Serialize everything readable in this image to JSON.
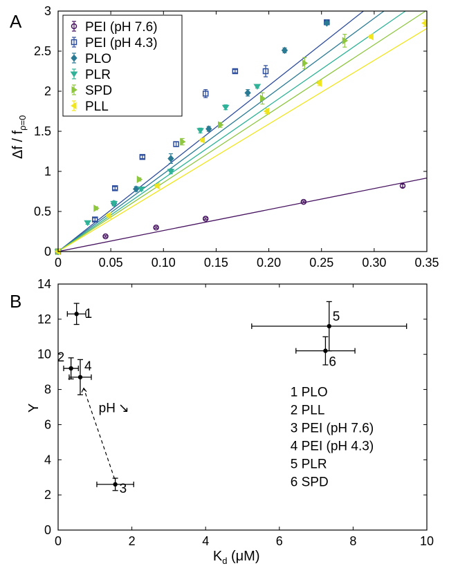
{
  "chart_data": [
    {
      "panel_label": "A",
      "type": "scatter",
      "xlim": [
        0,
        0.35
      ],
      "ylim": [
        0,
        3
      ],
      "xticks": [
        "0",
        "0.05",
        "0.10",
        "0.15",
        "0.20",
        "0.25",
        "0.30",
        "0.35"
      ],
      "yticks": [
        "0",
        "0.5",
        "1",
        "1.5",
        "2",
        "2.5",
        "3"
      ],
      "ylabel_main": "Δf / f",
      "ylabel_sub": "ρ=0",
      "xlabel": "",
      "legend_position": "top-left",
      "series": [
        {
          "name": "PEI (pH 7.6)",
          "color": "#45115f",
          "marker": "circle",
          "slope": 2.62,
          "points": [
            [
              0,
              0
            ],
            [
              0.045,
              0.19
            ],
            [
              0.093,
              0.3
            ],
            [
              0.14,
              0.41
            ],
            [
              0.233,
              0.62
            ],
            [
              0.327,
              0.82
            ]
          ],
          "errors": [
            0,
            0.01,
            0.01,
            0.01,
            0.01,
            0.02
          ]
        },
        {
          "name": "PEI (pH 4.3)",
          "color": "#2a4b9b",
          "marker": "square",
          "slope": 10.35,
          "points": [
            [
              0,
              0
            ],
            [
              0.035,
              0.4
            ],
            [
              0.054,
              0.79
            ],
            [
              0.08,
              1.18
            ],
            [
              0.112,
              1.34
            ],
            [
              0.14,
              1.97
            ],
            [
              0.168,
              2.25
            ],
            [
              0.197,
              2.25
            ],
            [
              0.255,
              2.86
            ]
          ],
          "errors": [
            0,
            0.02,
            0.02,
            0.02,
            0.03,
            0.05,
            0.02,
            0.07,
            0.02
          ]
        },
        {
          "name": "PLO",
          "color": "#2a7a94",
          "marker": "diamond",
          "slope": 9.7,
          "points": [
            [
              0,
              0
            ],
            [
              0.053,
              0.6
            ],
            [
              0.074,
              0.78
            ],
            [
              0.107,
              1.16
            ],
            [
              0.143,
              1.53
            ],
            [
              0.18,
              1.98
            ],
            [
              0.215,
              2.51
            ],
            [
              0.255,
              2.85
            ]
          ],
          "errors": [
            0,
            0.02,
            0.03,
            0.06,
            0.03,
            0.04,
            0.03,
            0.02
          ]
        },
        {
          "name": "PLR",
          "color": "#2fb297",
          "marker": "triangle-down",
          "slope": 9.1,
          "points": [
            [
              0,
              0
            ],
            [
              0.028,
              0.36
            ],
            [
              0.053,
              0.6
            ],
            [
              0.079,
              0.78
            ],
            [
              0.107,
              1.0
            ],
            [
              0.135,
              1.51
            ],
            [
              0.159,
              1.8
            ],
            [
              0.189,
              2.06
            ]
          ],
          "errors": [
            0,
            0.02,
            0.03,
            0.02,
            0.03,
            0.03,
            0.03,
            0.02
          ]
        },
        {
          "name": "SPD",
          "color": "#8ec63f",
          "marker": "triangle-right",
          "slope": 8.6,
          "points": [
            [
              0,
              0
            ],
            [
              0.036,
              0.54
            ],
            [
              0.077,
              0.9
            ],
            [
              0.118,
              1.37
            ],
            [
              0.154,
              1.58
            ],
            [
              0.194,
              1.91
            ],
            [
              0.234,
              2.35
            ],
            [
              0.272,
              2.63
            ]
          ],
          "errors": [
            0,
            0.02,
            0.02,
            0.04,
            0.03,
            0.07,
            0.07,
            0.08
          ]
        },
        {
          "name": "PLL",
          "color": "#f1e51e",
          "marker": "triangle-left",
          "slope": 7.95,
          "points": [
            [
              0,
              0
            ],
            [
              0.048,
              0.45
            ],
            [
              0.094,
              0.82
            ],
            [
              0.137,
              1.39
            ],
            [
              0.198,
              1.75
            ],
            [
              0.248,
              2.1
            ],
            [
              0.297,
              2.68
            ],
            [
              0.348,
              2.85
            ]
          ],
          "errors": [
            0,
            0.02,
            0.02,
            0.02,
            0.03,
            0.03,
            0.02,
            0.04
          ]
        }
      ]
    },
    {
      "panel_label": "B",
      "type": "scatter",
      "xlim": [
        0,
        10
      ],
      "ylim": [
        0,
        14
      ],
      "xticks": [
        "0",
        "2",
        "4",
        "6",
        "8",
        "10"
      ],
      "yticks": [
        "0",
        "2",
        "4",
        "6",
        "8",
        "10",
        "12",
        "14"
      ],
      "ylabel": "Y",
      "xlabel_main": "K",
      "xlabel_sub": "d",
      "xlabel_unit": " (μM)",
      "points": [
        {
          "label": "1",
          "x": 0.5,
          "y": 12.3,
          "xerr": 0.25,
          "yerr": 0.6
        },
        {
          "label": "2",
          "x": 0.35,
          "y": 9.2,
          "xerr": 0.2,
          "yerr": 0.6
        },
        {
          "label": "3",
          "x": 1.55,
          "y": 2.6,
          "xerr": 0.5,
          "yerr": 0.35
        },
        {
          "label": "4",
          "x": 0.6,
          "y": 8.7,
          "xerr": 0.3,
          "yerr": 1.0
        },
        {
          "label": "5",
          "x": 7.35,
          "y": 11.6,
          "xerr": 2.1,
          "yerr": 1.4
        },
        {
          "label": "6",
          "x": 7.25,
          "y": 10.2,
          "xerr": 0.8,
          "yerr": 0.8
        }
      ],
      "arrow_label": "pH",
      "arrow_glyph": "↘",
      "key": [
        "1 PLO",
        "2 PLL",
        "3 PEI (pH 7.6)",
        "4 PEI (pH 4.3)",
        "5 PLR",
        "6 SPD"
      ]
    }
  ]
}
